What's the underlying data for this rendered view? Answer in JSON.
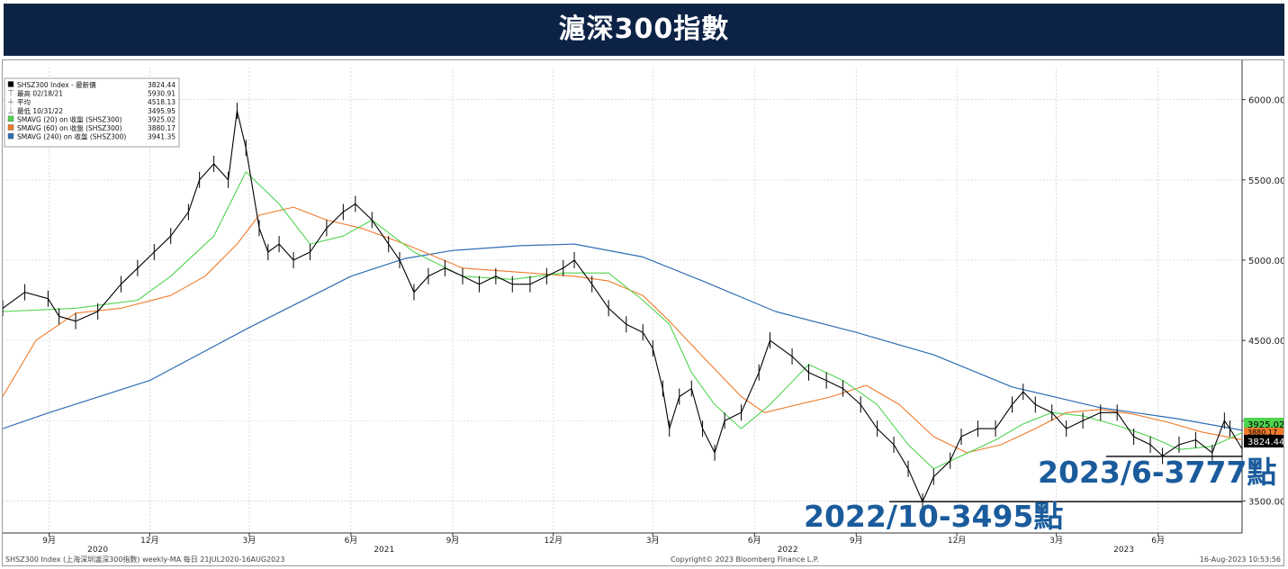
{
  "header": {
    "title": "滬深300指數"
  },
  "legend": {
    "entries": [
      {
        "label": "SHSZ300 Index - 最新價",
        "value": "3824.44",
        "color": "#000000",
        "kind": "square"
      },
      {
        "label": "最高 02/18/21",
        "value": "5930.91",
        "kind": "high"
      },
      {
        "label": "平均",
        "value": "4518.13",
        "kind": "avg"
      },
      {
        "label": "最低 10/31/22",
        "value": "3495.95",
        "kind": "low"
      },
      {
        "label": "SMAVG (20) on 收盤 (SHSZ300)",
        "value": "3925.02",
        "color": "#4fd44f",
        "kind": "square"
      },
      {
        "label": "SMAVG (60) on 收盤 (SHSZ300)",
        "value": "3880.17",
        "color": "#f07a2a",
        "kind": "square"
      },
      {
        "label": "SMAVG (240) on 收盤 (SHSZ300)",
        "value": "3941.35",
        "color": "#2f6db5",
        "kind": "square"
      }
    ]
  },
  "annotations": {
    "low_2023": "2023/6-3777點",
    "low_2022": "2022/10-3495點"
  },
  "price_tags": [
    {
      "value": "3925.02",
      "color": "#4fd44f"
    },
    {
      "value": "3880.17",
      "color": "#f07a2a"
    },
    {
      "value": "3824.44",
      "color": "#000000"
    }
  ],
  "footer": {
    "left": "SHSZ300 Index (上海深圳滬深300指數) weekly-MA  每日 21JUL2020-16AUG2023",
    "center": "Copyright© 2023 Bloomberg Finance L.P.",
    "right": "16-Aug-2023 10:53:56"
  },
  "colors": {
    "banner": "#0d2346",
    "annotation": "#1a5b9c",
    "price": "#000000",
    "sma20": "#4fd44f",
    "sma60": "#f07a2a",
    "sma240": "#2f6db5"
  },
  "chart_data": {
    "type": "line",
    "x_range": [
      "2020-07-21",
      "2023-08-16"
    ],
    "ylim": [
      3300,
      6200
    ],
    "y_ticks": [
      "6000.00",
      "5500.00",
      "5000.00",
      "4500.00",
      "4000.00",
      "3500.00"
    ],
    "x_ticks": [
      {
        "date": "2020-09-01",
        "label": "9月"
      },
      {
        "date": "2020-12-01",
        "label": "12月"
      },
      {
        "date": "2021-03-01",
        "label": "3月"
      },
      {
        "date": "2021-06-01",
        "label": "6月"
      },
      {
        "date": "2021-09-01",
        "label": "9月"
      },
      {
        "date": "2021-12-01",
        "label": "12月"
      },
      {
        "date": "2022-03-01",
        "label": "3月"
      },
      {
        "date": "2022-06-01",
        "label": "6月"
      },
      {
        "date": "2022-09-01",
        "label": "9月"
      },
      {
        "date": "2022-12-01",
        "label": "12月"
      },
      {
        "date": "2023-03-01",
        "label": "3月"
      },
      {
        "date": "2023-06-01",
        "label": "6月"
      }
    ],
    "year_labels": [
      {
        "date": "2020-10-15",
        "label": "2020"
      },
      {
        "date": "2021-07-01",
        "label": "2021"
      },
      {
        "date": "2022-07-01",
        "label": "2022"
      },
      {
        "date": "2023-05-01",
        "label": "2023"
      }
    ],
    "support_lines": [
      {
        "value": 3777,
        "from": "2023-04-15",
        "to": "2023-08-16"
      },
      {
        "value": 3495,
        "from": "2022-10-01",
        "to": "2023-08-16"
      }
    ],
    "series": [
      {
        "name": "SHSZ300 Index",
        "style": "bar",
        "dates": [
          "2020-07-21",
          "2020-08-10",
          "2020-08-31",
          "2020-09-10",
          "2020-09-25",
          "2020-10-15",
          "2020-11-05",
          "2020-11-20",
          "2020-12-05",
          "2020-12-20",
          "2021-01-05",
          "2021-01-15",
          "2021-01-28",
          "2021-02-10",
          "2021-02-18",
          "2021-02-26",
          "2021-03-10",
          "2021-03-18",
          "2021-03-28",
          "2021-04-10",
          "2021-04-25",
          "2021-05-10",
          "2021-05-25",
          "2021-06-05",
          "2021-06-20",
          "2021-07-05",
          "2021-07-15",
          "2021-07-28",
          "2021-08-10",
          "2021-08-25",
          "2021-09-10",
          "2021-09-25",
          "2021-10-10",
          "2021-10-25",
          "2021-11-10",
          "2021-11-25",
          "2021-12-10",
          "2021-12-20",
          "2022-01-05",
          "2022-01-20",
          "2022-02-05",
          "2022-02-20",
          "2022-03-01",
          "2022-03-10",
          "2022-03-16",
          "2022-03-25",
          "2022-04-05",
          "2022-04-15",
          "2022-04-26",
          "2022-05-05",
          "2022-05-20",
          "2022-06-05",
          "2022-06-15",
          "2022-07-05",
          "2022-07-20",
          "2022-08-05",
          "2022-08-20",
          "2022-09-05",
          "2022-09-20",
          "2022-10-05",
          "2022-10-18",
          "2022-10-31",
          "2022-11-10",
          "2022-11-25",
          "2022-12-05",
          "2022-12-20",
          "2023-01-05",
          "2023-01-20",
          "2023-01-30",
          "2023-02-10",
          "2023-02-25",
          "2023-03-10",
          "2023-03-25",
          "2023-04-10",
          "2023-04-25",
          "2023-05-10",
          "2023-05-25",
          "2023-06-05",
          "2023-06-20",
          "2023-07-05",
          "2023-07-20",
          "2023-07-31",
          "2023-08-05",
          "2023-08-16"
        ],
        "values": [
          4700,
          4800,
          4760,
          4650,
          4620,
          4680,
          4850,
          4950,
          5050,
          5150,
          5300,
          5500,
          5600,
          5500,
          5930,
          5700,
          5200,
          5050,
          5100,
          5000,
          5050,
          5200,
          5300,
          5350,
          5250,
          5100,
          5000,
          4800,
          4900,
          4950,
          4900,
          4850,
          4900,
          4850,
          4850,
          4900,
          4950,
          5000,
          4850,
          4700,
          4600,
          4550,
          4450,
          4200,
          3950,
          4150,
          4200,
          3950,
          3800,
          4000,
          4050,
          4300,
          4500,
          4400,
          4300,
          4250,
          4200,
          4100,
          3950,
          3850,
          3700,
          3496,
          3650,
          3750,
          3900,
          3950,
          3950,
          4100,
          4180,
          4100,
          4050,
          3950,
          4000,
          4050,
          4050,
          3900,
          3850,
          3780,
          3850,
          3880,
          3800,
          4000,
          3950,
          3824
        ]
      },
      {
        "name": "SMAVG (20) on 收盤 (SHSZ300)",
        "dates": [
          "2020-07-21",
          "2020-09-25",
          "2020-11-20",
          "2020-12-20",
          "2021-01-28",
          "2021-02-26",
          "2021-03-28",
          "2021-04-25",
          "2021-05-25",
          "2021-06-20",
          "2021-07-28",
          "2021-09-10",
          "2021-10-25",
          "2021-12-10",
          "2022-01-20",
          "2022-02-20",
          "2022-03-16",
          "2022-04-05",
          "2022-04-26",
          "2022-05-20",
          "2022-06-15",
          "2022-07-20",
          "2022-08-20",
          "2022-09-20",
          "2022-10-18",
          "2022-11-10",
          "2022-12-05",
          "2023-01-05",
          "2023-01-30",
          "2023-02-25",
          "2023-03-25",
          "2023-04-25",
          "2023-05-25",
          "2023-06-20",
          "2023-07-20",
          "2023-08-16"
        ],
        "values": [
          4680,
          4700,
          4750,
          4900,
          5150,
          5550,
          5350,
          5100,
          5150,
          5250,
          5050,
          4900,
          4880,
          4920,
          4920,
          4750,
          4600,
          4300,
          4100,
          3950,
          4100,
          4350,
          4250,
          4100,
          3850,
          3700,
          3780,
          3880,
          3980,
          4050,
          4030,
          3970,
          3900,
          3820,
          3840,
          3925
        ]
      },
      {
        "name": "SMAVG (60) on 收盤 (SHSZ300)",
        "dates": [
          "2020-07-21",
          "2020-08-20",
          "2020-09-25",
          "2020-11-05",
          "2020-12-20",
          "2021-01-20",
          "2021-02-18",
          "2021-03-10",
          "2021-04-10",
          "2021-05-10",
          "2021-06-10",
          "2021-07-20",
          "2021-09-10",
          "2021-11-10",
          "2021-12-20",
          "2022-01-20",
          "2022-02-20",
          "2022-03-16",
          "2022-04-15",
          "2022-05-20",
          "2022-06-10",
          "2022-07-10",
          "2022-08-10",
          "2022-09-10",
          "2022-10-10",
          "2022-11-10",
          "2022-12-10",
          "2023-01-10",
          "2023-02-10",
          "2023-03-10",
          "2023-04-10",
          "2023-05-10",
          "2023-06-10",
          "2023-07-10",
          "2023-08-16"
        ],
        "values": [
          4150,
          4500,
          4670,
          4700,
          4780,
          4900,
          5100,
          5280,
          5330,
          5250,
          5200,
          5100,
          4950,
          4920,
          4900,
          4870,
          4780,
          4620,
          4400,
          4150,
          4050,
          4100,
          4150,
          4220,
          4100,
          3900,
          3800,
          3850,
          3950,
          4050,
          4070,
          4040,
          3990,
          3930,
          3880
        ]
      },
      {
        "name": "SMAVG (240) on 收盤 (SHSZ300)",
        "dates": [
          "2020-07-21",
          "2020-09-01",
          "2020-12-01",
          "2021-03-01",
          "2021-06-01",
          "2021-07-20",
          "2021-09-01",
          "2021-11-01",
          "2021-12-20",
          "2022-02-20",
          "2022-04-15",
          "2022-06-20",
          "2022-09-01",
          "2022-11-10",
          "2023-01-20",
          "2023-04-10",
          "2023-06-20",
          "2023-08-16"
        ],
        "values": [
          3950,
          4050,
          4250,
          4580,
          4900,
          5010,
          5060,
          5090,
          5100,
          5020,
          4870,
          4680,
          4550,
          4410,
          4210,
          4080,
          4010,
          3940
        ]
      }
    ]
  }
}
